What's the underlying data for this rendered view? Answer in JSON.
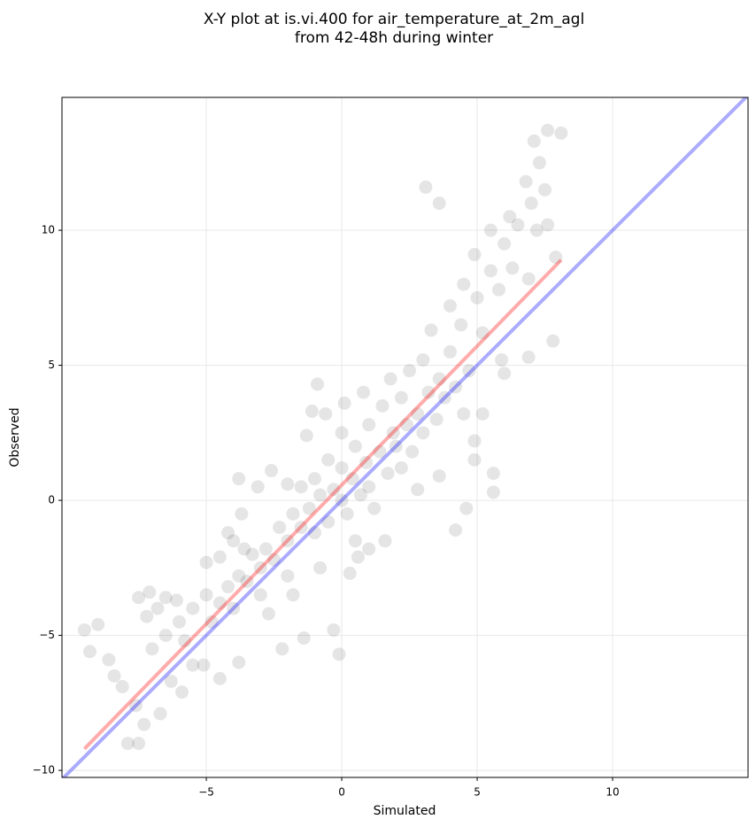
{
  "chart_data": {
    "type": "scatter",
    "title": "X-Y plot at is.vi.400 for air_temperature_at_2m_agl",
    "subtitle": "from 42-48h during winter",
    "x_label": "Simulated",
    "y_label": "Observed",
    "xlim": [
      -10.33,
      15.0
    ],
    "ylim": [
      -10.26,
      14.92
    ],
    "xticks": [
      {
        "value": -5,
        "label": "−5"
      },
      0,
      5,
      10
    ],
    "yticks": [
      {
        "value": -10,
        "label": "−10"
      },
      {
        "value": -5,
        "label": "−5"
      },
      0,
      5,
      10
    ],
    "grid": true,
    "points": {
      "color": "#000000",
      "x": [
        -9.5,
        -9.3,
        -9.0,
        -8.6,
        -8.4,
        -8.1,
        -7.9,
        -7.5,
        -7.3,
        -7.6,
        -7.1,
        -7.5,
        -6.8,
        -6.5,
        -6.1,
        -6.7,
        -5.9,
        -6.3,
        -5.5,
        -5.1,
        -4.5,
        -5.0,
        -4.5,
        -4.0,
        -3.7,
        -3.8,
        -3.1,
        -2.6,
        -2.0,
        -1.3,
        -1.1,
        -0.9,
        -0.6,
        0.1,
        0.8,
        3.1,
        3.6,
        7.6,
        8.1,
        7.1,
        7.3,
        6.2,
        7.6,
        7.9,
        5.6,
        5.6,
        4.6,
        4.2,
        7.8,
        6.9,
        5.9,
        5.2,
        4.9,
        4.9,
        -0.1,
        -0.3,
        -1.4,
        -2.2,
        -3.8,
        0.3,
        0.6,
        1.0,
        1.6,
        2.8,
        3.6,
        -6,
        -5.5,
        -5,
        -4.8,
        -4.5,
        -4.2,
        -4,
        -3.8,
        -3.5,
        -3.3,
        -3,
        -3,
        -2.8,
        -2.5,
        -2.3,
        -2,
        -2,
        -1.8,
        -1.5,
        -1.5,
        -1.2,
        -1,
        -1,
        -0.8,
        -0.5,
        -0.5,
        -0.3,
        0,
        0,
        0,
        0.2,
        0.4,
        0.5,
        0.7,
        0.9,
        1,
        1,
        1.2,
        1.4,
        1.5,
        1.7,
        1.9,
        2,
        2.2,
        2.2,
        2.4,
        2.5,
        2.6,
        2.8,
        3,
        3,
        3.2,
        3.3,
        3.5,
        3.6,
        3.8,
        4,
        4,
        4.2,
        4.4,
        4.5,
        4.7,
        4.9,
        5,
        5.2,
        5.5,
        5.5,
        5.8,
        6,
        6.3,
        6.5,
        6.8,
        6.9,
        7,
        7.2,
        7.5,
        -6.5,
        -7,
        -7.2,
        -5.8,
        -2.7,
        -1.8,
        -0.8,
        1.8,
        0.5,
        -4.2,
        -3.6,
        6,
        4.5
      ],
      "y": [
        -4.8,
        -5.6,
        -4.6,
        -5.9,
        -6.5,
        -6.9,
        -9.0,
        -9.0,
        -8.3,
        -7.6,
        -3.4,
        -3.6,
        -4.0,
        -3.6,
        -3.7,
        -7.9,
        -7.1,
        -6.7,
        -6.1,
        -6.1,
        -6.6,
        -2.3,
        -2.1,
        -1.5,
        -0.5,
        0.8,
        0.5,
        1.1,
        0.6,
        2.4,
        3.3,
        4.3,
        3.2,
        3.6,
        4.0,
        11.6,
        11.0,
        13.7,
        13.6,
        13.3,
        12.5,
        10.5,
        10.2,
        9.0,
        1.0,
        0.3,
        -0.3,
        -1.1,
        5.9,
        5.3,
        5.2,
        3.2,
        2.2,
        1.5,
        -5.7,
        -4.8,
        -5.1,
        -5.5,
        -6.0,
        -2.7,
        -2.1,
        -1.8,
        -1.5,
        0.4,
        0.9,
        -4.5,
        -4,
        -3.5,
        -4.5,
        -3.8,
        -3.2,
        -4,
        -2.8,
        -3,
        -2,
        -2.5,
        -3.5,
        -1.8,
        -2.2,
        -1,
        -1.5,
        -2.8,
        -0.5,
        -1,
        0.5,
        -0.3,
        -1.2,
        0.8,
        0.2,
        -0.8,
        1.5,
        0.4,
        0,
        1.2,
        2.5,
        -0.5,
        0.8,
        2,
        0.2,
        1.4,
        0.5,
        2.8,
        -0.3,
        1.8,
        3.5,
        1,
        2.5,
        2,
        1.2,
        3.8,
        2.8,
        4.8,
        1.8,
        3.2,
        2.5,
        5.2,
        4,
        6.3,
        3,
        4.5,
        3.8,
        5.5,
        7.2,
        4.2,
        6.5,
        8,
        4.8,
        9.1,
        7.5,
        6.2,
        10,
        8.5,
        7.8,
        9.5,
        8.6,
        10.2,
        11.8,
        8.2,
        11,
        10,
        11.5,
        -5,
        -5.5,
        -4.3,
        -5.2,
        -4.2,
        -3.5,
        -2.5,
        4.5,
        -1.5,
        -1.2,
        -1.8,
        4.7,
        3.2
      ]
    },
    "lines": [
      {
        "color": "#ff0000",
        "x": [
          -9.5,
          8.1
        ],
        "y": [
          -9.2,
          8.9
        ]
      },
      {
        "color": "#0000ff",
        "x": [
          -10.33,
          15.0
        ],
        "y": [
          -10.33,
          15.0
        ]
      }
    ]
  }
}
